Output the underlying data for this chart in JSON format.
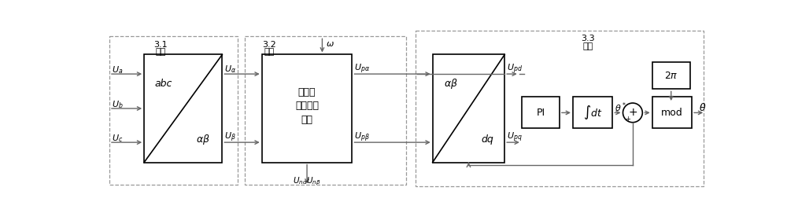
{
  "bg_color": "#ffffff",
  "box_edge": "#000000",
  "box_fill": "#ffffff",
  "arrow_color": "#666666",
  "dashed_color": "#999999",
  "text_color": "#000000",
  "green_color": "#228822",
  "fig_width": 10.0,
  "fig_height": 2.71,
  "mod31_label": "3.1\n模块",
  "mod32_label": "3.2\n模块",
  "mod33_label": "3.3\n模块",
  "harmonic_line1": "基波与",
  "harmonic_line2": "谐波分量",
  "harmonic_line3": "分离",
  "pi_label": "PI",
  "int_label": "∫dt",
  "twopi_label": "2π",
  "mod_label": "mod"
}
